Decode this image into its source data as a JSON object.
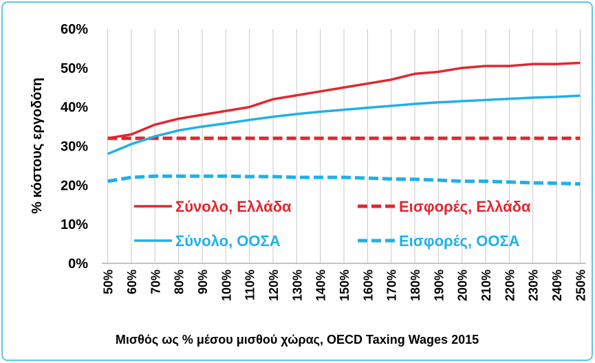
{
  "chart_data": {
    "type": "line",
    "x_label": "Μισθός ως % μέσου μισθού χώρας, OECD Taxing Wages 2015",
    "y_label": "% κόστους εργοδότη",
    "x": [
      50,
      60,
      70,
      80,
      90,
      100,
      110,
      120,
      130,
      140,
      150,
      160,
      170,
      180,
      190,
      200,
      210,
      220,
      230,
      240,
      250
    ],
    "series": [
      {
        "name": "Σύνολο, Ελλάδα",
        "color": "#e3262e",
        "style": "solid",
        "values": [
          32,
          33,
          35.5,
          37,
          38,
          39,
          40,
          42,
          43,
          44,
          45,
          46,
          47,
          48.5,
          49,
          50,
          50.5,
          50.5,
          51,
          51,
          51.3
        ]
      },
      {
        "name": "Εισφορές, Ελλάδα",
        "color": "#e3262e",
        "style": "dashed",
        "values": [
          32,
          32,
          32,
          32,
          32,
          32,
          32,
          32,
          32,
          32,
          32,
          32,
          32,
          32,
          32,
          32,
          32,
          32,
          32,
          32,
          32
        ]
      },
      {
        "name": "Σύνολο, ΟΟΣΑ",
        "color": "#1fb0ea",
        "style": "solid",
        "values": [
          28,
          30.5,
          32.5,
          34,
          35,
          35.8,
          36.7,
          37.5,
          38.2,
          38.8,
          39.3,
          39.8,
          40.3,
          40.8,
          41.2,
          41.5,
          41.8,
          42.1,
          42.4,
          42.6,
          42.9
        ]
      },
      {
        "name": "Εισφορές, ΟΟΣΑ",
        "color": "#1fb0ea",
        "style": "dashed",
        "values": [
          21,
          22,
          22.3,
          22.3,
          22.3,
          22.3,
          22.2,
          22.2,
          22,
          22,
          22,
          21.8,
          21.6,
          21.5,
          21.3,
          21,
          21,
          20.8,
          20.6,
          20.5,
          20.3
        ]
      }
    ],
    "xlim": [
      47.5,
      252.5
    ],
    "xticks": [
      {
        "value": 50,
        "label": "50%"
      },
      {
        "value": 60,
        "label": "60%"
      },
      {
        "value": 70,
        "label": "70%"
      },
      {
        "value": 80,
        "label": "80%"
      },
      {
        "value": 90,
        "label": "90%"
      },
      {
        "value": 100,
        "label": "100%"
      },
      {
        "value": 110,
        "label": "110%"
      },
      {
        "value": 120,
        "label": "120%"
      },
      {
        "value": 130,
        "label": "130%"
      },
      {
        "value": 140,
        "label": "140%"
      },
      {
        "value": 150,
        "label": "150%"
      },
      {
        "value": 160,
        "label": "160%"
      },
      {
        "value": 170,
        "label": "170%"
      },
      {
        "value": 180,
        "label": "180%"
      },
      {
        "value": 190,
        "label": "190%"
      },
      {
        "value": 200,
        "label": "200%"
      },
      {
        "value": 210,
        "label": "210%"
      },
      {
        "value": 220,
        "label": "220%"
      },
      {
        "value": 230,
        "label": "230%"
      },
      {
        "value": 240,
        "label": "240%"
      },
      {
        "value": 250,
        "label": "250%"
      }
    ],
    "ylim": [
      0,
      60
    ],
    "yticks": [
      {
        "value": 0,
        "label": "0%"
      },
      {
        "value": 10,
        "label": "10%"
      },
      {
        "value": 20,
        "label": "20%"
      },
      {
        "value": 30,
        "label": "30%"
      },
      {
        "value": 40,
        "label": "40%"
      },
      {
        "value": 50,
        "label": "50%"
      },
      {
        "value": 60,
        "label": "60%"
      }
    ],
    "grid": "x",
    "legend": "lower center"
  }
}
